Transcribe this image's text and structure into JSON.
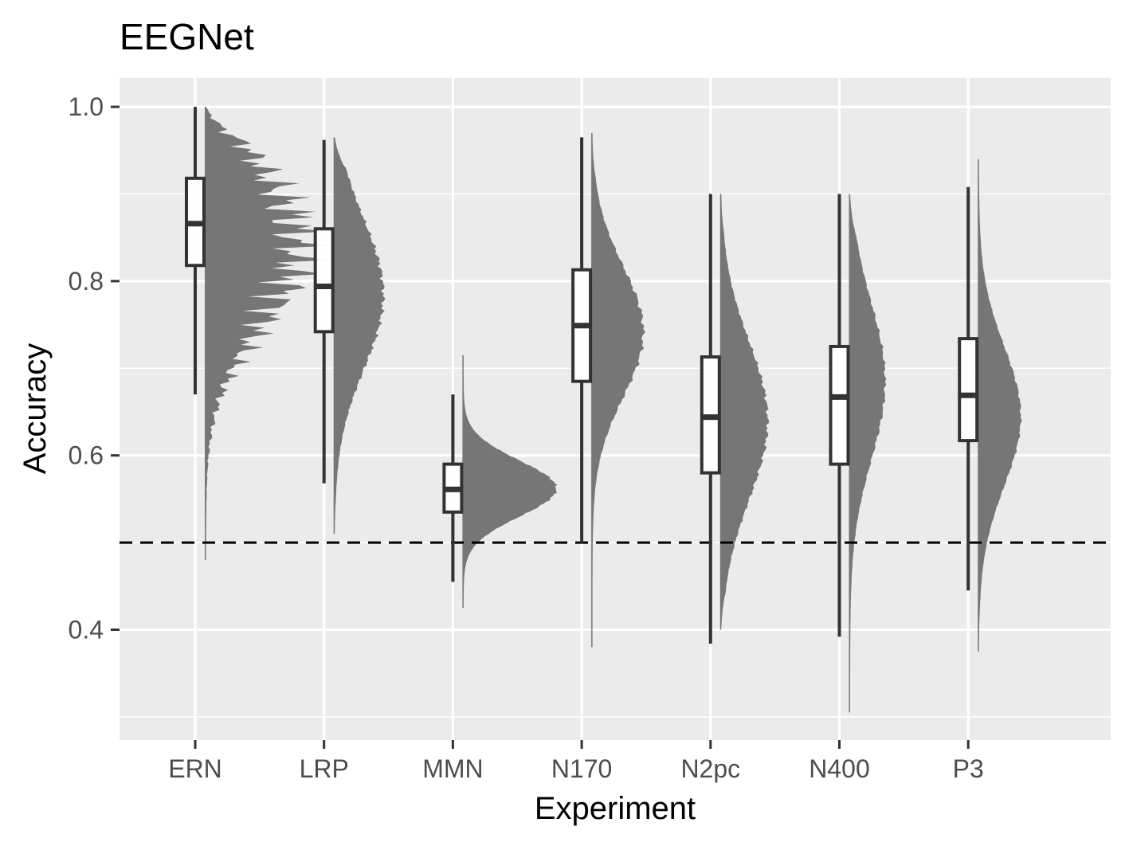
{
  "chart_data": {
    "type": "box-and-half-violin",
    "title": "EEGNet",
    "xlabel": "Experiment",
    "ylabel": "Accuracy",
    "categories": [
      "ERN",
      "LRP",
      "MMN",
      "N170",
      "N2pc",
      "N400",
      "P3"
    ],
    "ylim": [
      0.27,
      1.035
    ],
    "yticks": [
      0.4,
      0.6,
      0.8,
      1.0
    ],
    "ytick_labels": [
      "0.4",
      "0.6",
      "0.8",
      "1.0"
    ],
    "grid": true,
    "reference_line": {
      "y": 0.5,
      "style": "dashed"
    },
    "boxes": [
      {
        "name": "ERN",
        "min": 0.67,
        "q1": 0.818,
        "median": 0.866,
        "q3": 0.918,
        "max": 1.0
      },
      {
        "name": "LRP",
        "min": 0.568,
        "q1": 0.742,
        "median": 0.794,
        "q3": 0.86,
        "max": 0.962
      },
      {
        "name": "MMN",
        "min": 0.455,
        "q1": 0.535,
        "median": 0.561,
        "q3": 0.59,
        "max": 0.67
      },
      {
        "name": "N170",
        "min": 0.5,
        "q1": 0.685,
        "median": 0.749,
        "q3": 0.813,
        "max": 0.965
      },
      {
        "name": "N2pc",
        "min": 0.384,
        "q1": 0.58,
        "median": 0.644,
        "q3": 0.713,
        "max": 0.9
      },
      {
        "name": "N400",
        "min": 0.392,
        "q1": 0.59,
        "median": 0.667,
        "q3": 0.725,
        "max": 0.9
      },
      {
        "name": "P3",
        "min": 0.445,
        "q1": 0.617,
        "median": 0.669,
        "q3": 0.734,
        "max": 0.908
      }
    ],
    "densities": [
      {
        "name": "ERN",
        "lo": 0.48,
        "hi": 1.0,
        "mode": 0.84,
        "sd": 0.09,
        "peak": 0.82,
        "jagged": 0.45
      },
      {
        "name": "LRP",
        "lo": 0.51,
        "hi": 0.965,
        "mode": 0.785,
        "sd": 0.085,
        "peak": 0.43,
        "jagged": 0.06
      },
      {
        "name": "MMN",
        "lo": 0.425,
        "hi": 0.715,
        "mode": 0.562,
        "sd": 0.032,
        "peak": 0.82,
        "jagged": 0.02
      },
      {
        "name": "N170",
        "lo": 0.38,
        "hi": 0.97,
        "mode": 0.742,
        "sd": 0.075,
        "peak": 0.45,
        "jagged": 0.05
      },
      {
        "name": "N2pc",
        "lo": 0.4,
        "hi": 0.9,
        "mode": 0.64,
        "sd": 0.09,
        "peak": 0.41,
        "jagged": 0.05
      },
      {
        "name": "N400",
        "lo": 0.305,
        "hi": 0.9,
        "mode": 0.685,
        "sd": 0.09,
        "peak": 0.31,
        "jagged": 0.05
      },
      {
        "name": "P3",
        "lo": 0.375,
        "hi": 0.94,
        "mode": 0.645,
        "sd": 0.08,
        "peak": 0.37,
        "jagged": 0.03
      }
    ],
    "colors": {
      "panel": "#ebebeb",
      "grid": "#ffffff",
      "density": "#6b6b6b",
      "box_fill": "#ffffff",
      "box_line": "#333333",
      "ref_line": "#000000"
    }
  }
}
